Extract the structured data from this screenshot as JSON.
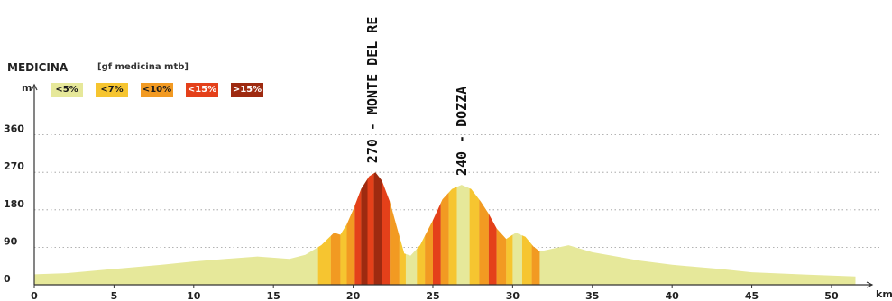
{
  "chart_data": {
    "type": "area",
    "title": "MEDICINA",
    "subtitle": "[gf medicina mtb]",
    "xlabel": "km",
    "ylabel": "m",
    "xlim": [
      0,
      53
    ],
    "ylim": [
      0,
      450
    ],
    "x_ticks": [
      0,
      5,
      10,
      15,
      20,
      25,
      30,
      35,
      40,
      45,
      50
    ],
    "y_ticks": [
      0,
      90,
      180,
      270,
      360
    ],
    "grid": "horizontal-dotted",
    "legend": [
      {
        "label": "<5%",
        "color": "#e6e89a"
      },
      {
        "label": "<7%",
        "color": "#f6c530"
      },
      {
        "label": "<10%",
        "color": "#f29a22"
      },
      {
        "label": "<15%",
        "color": "#e4401a"
      },
      {
        "label": ">15%",
        "color": "#9e2a10"
      }
    ],
    "series": [
      {
        "x": [
          0,
          2,
          5,
          8,
          10,
          12,
          14,
          16,
          17,
          18,
          18.8,
          19.2,
          19.6,
          20.0,
          20.5,
          21.0,
          21.4,
          21.8,
          22.3,
          22.8,
          23.2,
          23.6,
          24.2,
          25.0,
          25.6,
          26.2,
          26.8,
          27.4,
          28.0,
          28.5,
          29.0,
          29.6,
          30.2,
          30.8,
          31.3,
          31.7,
          32.3,
          33.5,
          35,
          38,
          40,
          43,
          45,
          48,
          50,
          51.5
        ],
        "y": [
          25,
          28,
          38,
          48,
          56,
          62,
          68,
          62,
          72,
          95,
          125,
          120,
          145,
          180,
          230,
          260,
          270,
          250,
          200,
          130,
          75,
          70,
          95,
          155,
          205,
          230,
          240,
          230,
          200,
          170,
          135,
          110,
          125,
          115,
          92,
          80,
          85,
          95,
          78,
          58,
          48,
          38,
          30,
          25,
          22,
          20
        ]
      }
    ],
    "grade_bands": [
      {
        "start": 17.8,
        "end": 18.6,
        "grade": "<7%"
      },
      {
        "start": 18.6,
        "end": 19.2,
        "grade": "<10%"
      },
      {
        "start": 19.2,
        "end": 19.6,
        "grade": "<7%"
      },
      {
        "start": 19.6,
        "end": 20.1,
        "grade": "<10%"
      },
      {
        "start": 20.1,
        "end": 20.5,
        "grade": "<15%"
      },
      {
        "start": 20.5,
        "end": 20.9,
        "grade": ">15%"
      },
      {
        "start": 20.9,
        "end": 21.3,
        "grade": "<15%"
      },
      {
        "start": 21.3,
        "end": 21.8,
        "grade": ">15%"
      },
      {
        "start": 21.8,
        "end": 22.3,
        "grade": "<15%"
      },
      {
        "start": 22.3,
        "end": 22.9,
        "grade": "<10%"
      },
      {
        "start": 22.9,
        "end": 23.3,
        "grade": "<7%"
      },
      {
        "start": 24.0,
        "end": 24.5,
        "grade": "<7%"
      },
      {
        "start": 24.5,
        "end": 25.0,
        "grade": "<10%"
      },
      {
        "start": 25.0,
        "end": 25.5,
        "grade": "<15%"
      },
      {
        "start": 25.5,
        "end": 26.0,
        "grade": "<10%"
      },
      {
        "start": 26.0,
        "end": 26.5,
        "grade": "<7%"
      },
      {
        "start": 27.3,
        "end": 27.9,
        "grade": "<7%"
      },
      {
        "start": 27.9,
        "end": 28.5,
        "grade": "<10%"
      },
      {
        "start": 28.5,
        "end": 29.0,
        "grade": "<15%"
      },
      {
        "start": 29.0,
        "end": 29.6,
        "grade": "<10%"
      },
      {
        "start": 29.6,
        "end": 30.0,
        "grade": "<7%"
      },
      {
        "start": 30.6,
        "end": 31.2,
        "grade": "<7%"
      },
      {
        "start": 31.2,
        "end": 31.7,
        "grade": "<10%"
      }
    ],
    "annotations": [
      {
        "text": "270 - MONTE DEL RE",
        "x": 21.2,
        "y": 270
      },
      {
        "text": "240 - DOZZA",
        "x": 26.8,
        "y": 240
      }
    ]
  }
}
